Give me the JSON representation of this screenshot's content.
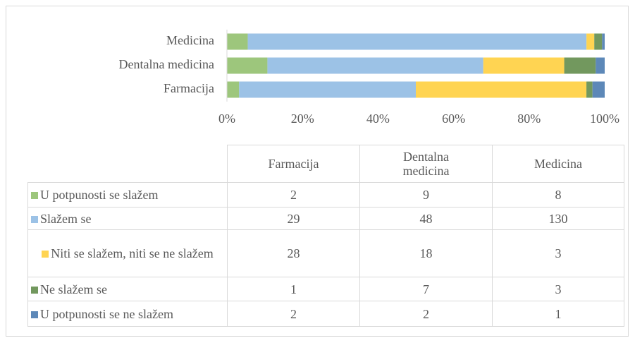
{
  "chart_data": {
    "type": "bar",
    "orientation": "horizontal",
    "stacked": "percent",
    "categories": [
      "Farmacija",
      "Dentalna medicina",
      "Medicina"
    ],
    "series": [
      {
        "name": "U potpunosti se slažem",
        "color": "#9dc67c",
        "values": [
          2,
          9,
          8
        ]
      },
      {
        "name": "Slažem se",
        "color": "#9cc2e6",
        "values": [
          29,
          48,
          130
        ]
      },
      {
        "name": "Niti se slažem, niti se ne slažem",
        "color": "#ffd452",
        "values": [
          28,
          18,
          3
        ]
      },
      {
        "name": "Ne slažem se",
        "color": "#72985e",
        "values": [
          1,
          7,
          3
        ]
      },
      {
        "name": "U potpunosti se ne slažem",
        "color": "#5d88b8",
        "values": [
          2,
          2,
          1
        ]
      }
    ],
    "xlim": [
      0,
      100
    ],
    "xticks": [
      {
        "value": 0,
        "label": "0%"
      },
      {
        "value": 20,
        "label": "20%"
      },
      {
        "value": 40,
        "label": "40%"
      },
      {
        "value": 60,
        "label": "60%"
      },
      {
        "value": 80,
        "label": "80%"
      },
      {
        "value": 100,
        "label": "100%"
      }
    ],
    "data_table": true
  }
}
